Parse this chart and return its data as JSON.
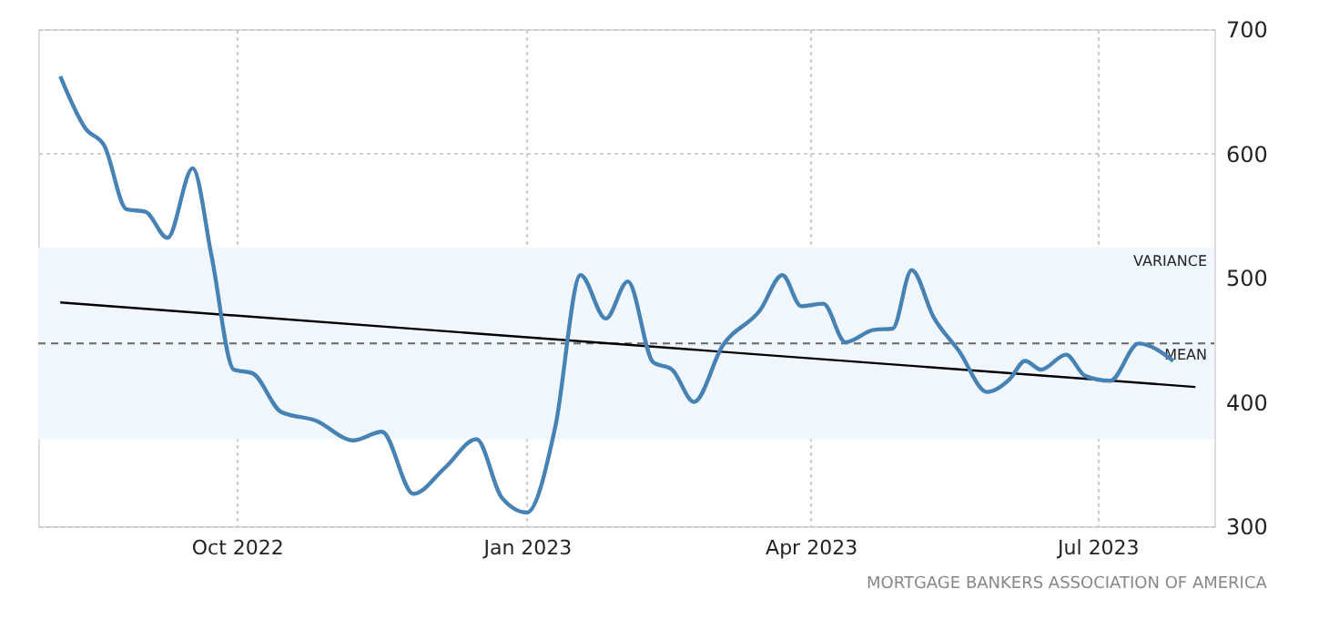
{
  "chart_data": {
    "type": "line",
    "xlim": [
      "2022-07-30",
      "2023-08-07"
    ],
    "ylim": [
      300,
      700
    ],
    "xticks": [
      {
        "value": "2022-10-01",
        "label": "Oct 2022"
      },
      {
        "value": "2023-01-01",
        "label": "Jan 2023"
      },
      {
        "value": "2023-04-01",
        "label": "Apr 2023"
      },
      {
        "value": "2023-07-01",
        "label": "Jul 2023"
      }
    ],
    "yticks": [
      300,
      400,
      500,
      600,
      700
    ],
    "grid": true,
    "line_style": "solid",
    "series": [
      {
        "color": "#4682b4",
        "x": [
          "2022-08-06",
          "2022-08-14",
          "2022-08-20",
          "2022-08-27",
          "2022-09-02",
          "2022-09-09",
          "2022-09-17",
          "2022-09-23",
          "2022-09-30",
          "2022-10-06",
          "2022-10-15",
          "2022-10-26",
          "2022-11-07",
          "2022-11-16",
          "2022-11-26",
          "2022-12-06",
          "2022-12-16",
          "2022-12-24",
          "2023-01-01",
          "2023-01-10",
          "2023-01-18",
          "2023-01-26",
          "2023-02-02",
          "2023-02-10",
          "2023-02-16",
          "2023-02-23",
          "2023-03-04",
          "2023-03-16",
          "2023-03-23",
          "2023-03-29",
          "2023-04-05",
          "2023-04-12",
          "2023-04-21",
          "2023-04-27",
          "2023-05-03",
          "2023-05-10",
          "2023-05-18",
          "2023-05-27",
          "2023-06-03",
          "2023-06-08",
          "2023-06-13",
          "2023-06-21",
          "2023-06-27",
          "2023-07-05",
          "2023-07-14",
          "2023-07-25"
        ],
        "values": [
          662,
          620,
          606,
          555,
          553,
          532,
          588,
          517,
          426,
          423,
          392,
          385,
          369,
          376,
          326,
          347,
          370,
          323,
          311,
          380,
          502,
          467,
          497,
          432,
          426,
          400,
          445,
          474,
          502,
          477,
          479,
          448,
          458,
          459,
          506,
          468,
          441,
          408,
          418,
          433,
          426,
          438,
          421,
          417,
          447,
          433
        ]
      },
      {
        "type": "line",
        "color": "#000000",
        "x": [
          "2022-08-06",
          "2023-08-01"
        ],
        "values": [
          480,
          412
        ]
      }
    ],
    "ref_lines": [
      {
        "axis": "y",
        "value": 447,
        "label": "MEAN",
        "color": "#666666",
        "line_style": "dashed"
      }
    ],
    "bands": [
      {
        "axis": "y",
        "from": 370,
        "to": 524,
        "label": "VARIANCE",
        "color": "#f0f7fe"
      }
    ],
    "annotations": [
      "MORTGAGE BANKERS ASSOCIATION OF AMERICA"
    ]
  }
}
